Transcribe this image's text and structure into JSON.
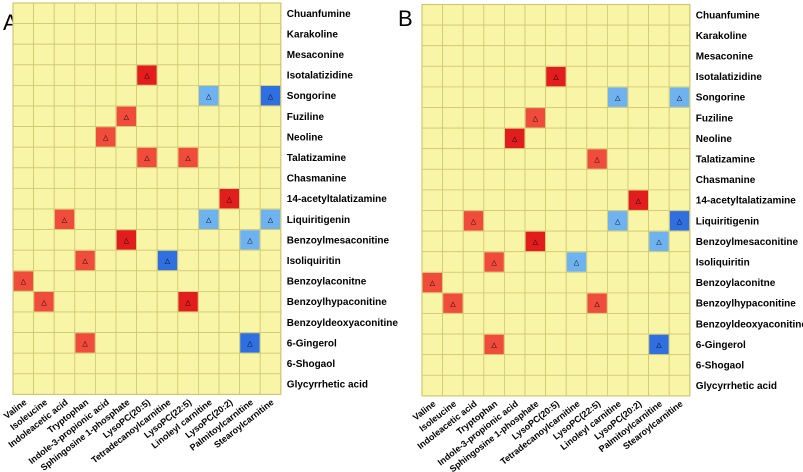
{
  "colors": {
    "background_cell": "#f9f5a7",
    "grid_line": "#cfc870",
    "strong_positive": "#e21d1d",
    "moderate_positive": "#f04c3c",
    "strong_negative": "#2f6fe0",
    "moderate_negative": "#6eb2f0"
  },
  "marker_symbol": "△",
  "chart_data": [
    {
      "panel": "A",
      "type": "heatmap",
      "rows": [
        "Chuanfumine",
        "Karakoline",
        "Mesaconine",
        "Isotalatizidine",
        "Songorine",
        "Fuziline",
        "Neoline",
        "Talatizamine",
        "Chasmanine",
        "14-acetyltalatizamine",
        "Liquiritigenin",
        "Benzoylmesaconitine",
        "Isoliquiritin",
        "Benzoylaconitne",
        "Benzoylhypaconitine",
        "Benzoyldeoxyaconitine",
        "6-Gingerol",
        "6-Shogaol",
        "Glycyrrhetic acid"
      ],
      "columns": [
        "Valine",
        "Isoleucine",
        "Indoleacetic acid",
        "Tryptophan",
        "Indole-3-propionic acid",
        "Sphingosine 1-phosphate",
        "LysoPC(20:5)",
        "Tetradecanoylcarnitine",
        "LysoPC(22:5)",
        "Linoleyl carnitine",
        "LysoPC(20:2)",
        "Palmitoylcarnitine",
        "Stearoylcarnitine"
      ],
      "cells": [
        {
          "row": "Isotalatizidine",
          "col": "LysoPC(20:5)",
          "level": "strong_positive"
        },
        {
          "row": "Songorine",
          "col": "Linoleyl carnitine",
          "level": "moderate_negative"
        },
        {
          "row": "Songorine",
          "col": "Stearoylcarnitine",
          "level": "strong_negative"
        },
        {
          "row": "Fuziline",
          "col": "Sphingosine 1-phosphate",
          "level": "moderate_positive"
        },
        {
          "row": "Neoline",
          "col": "Indole-3-propionic acid",
          "level": "moderate_positive"
        },
        {
          "row": "Talatizamine",
          "col": "LysoPC(20:5)",
          "level": "moderate_positive"
        },
        {
          "row": "Talatizamine",
          "col": "LysoPC(22:5)",
          "level": "moderate_positive"
        },
        {
          "row": "14-acetyltalatizamine",
          "col": "LysoPC(20:2)",
          "level": "strong_positive"
        },
        {
          "row": "Liquiritigenin",
          "col": "Indoleacetic acid",
          "level": "moderate_positive"
        },
        {
          "row": "Liquiritigenin",
          "col": "Linoleyl carnitine",
          "level": "moderate_negative"
        },
        {
          "row": "Liquiritigenin",
          "col": "Stearoylcarnitine",
          "level": "moderate_negative"
        },
        {
          "row": "Benzoylmesaconitine",
          "col": "Sphingosine 1-phosphate",
          "level": "strong_positive"
        },
        {
          "row": "Benzoylmesaconitine",
          "col": "Palmitoylcarnitine",
          "level": "moderate_negative"
        },
        {
          "row": "Isoliquiritin",
          "col": "Tryptophan",
          "level": "moderate_positive"
        },
        {
          "row": "Isoliquiritin",
          "col": "Tetradecanoylcarnitine",
          "level": "strong_negative"
        },
        {
          "row": "Benzoylaconitne",
          "col": "Valine",
          "level": "moderate_positive"
        },
        {
          "row": "Benzoylhypaconitine",
          "col": "Isoleucine",
          "level": "moderate_positive"
        },
        {
          "row": "Benzoylhypaconitine",
          "col": "LysoPC(22:5)",
          "level": "strong_positive"
        },
        {
          "row": "6-Gingerol",
          "col": "Tryptophan",
          "level": "moderate_positive"
        },
        {
          "row": "6-Gingerol",
          "col": "Palmitoylcarnitine",
          "level": "strong_negative"
        }
      ]
    },
    {
      "panel": "B",
      "type": "heatmap",
      "rows": [
        "Chuanfumine",
        "Karakoline",
        "Mesaconine",
        "Isotalatizidine",
        "Songorine",
        "Fuziline",
        "Neoline",
        "Talatizamine",
        "Chasmanine",
        "14-acetyltalatizamine",
        "Liquiritigenin",
        "Benzoylmesaconitine",
        "Isoliquiritin",
        "Benzoylaconitne",
        "Benzoylhypaconitine",
        "Benzoyldeoxyaconitine",
        "6-Gingerol",
        "6-Shogaol",
        "Glycyrrhetic acid"
      ],
      "columns": [
        "Valine",
        "Isoleucine",
        "Indoleacetic acid",
        "Tryptophan",
        "Indole-3-propionic acid",
        "Sphingosine 1-phosphate",
        "LysoPC(20:5)",
        "Tetradecanoylcarnitine",
        "LysoPC(22:5)",
        "Linoleyl carnitine",
        "LysoPC(20:2)",
        "Palmitoylcarnitine",
        "Stearoylcarnitine"
      ],
      "cells": [
        {
          "row": "Isotalatizidine",
          "col": "LysoPC(20:5)",
          "level": "strong_positive"
        },
        {
          "row": "Songorine",
          "col": "Linoleyl carnitine",
          "level": "moderate_negative"
        },
        {
          "row": "Songorine",
          "col": "Stearoylcarnitine",
          "level": "moderate_negative"
        },
        {
          "row": "Fuziline",
          "col": "Sphingosine 1-phosphate",
          "level": "moderate_positive"
        },
        {
          "row": "Neoline",
          "col": "Indole-3-propionic acid",
          "level": "strong_positive"
        },
        {
          "row": "Talatizamine",
          "col": "LysoPC(22:5)",
          "level": "moderate_positive"
        },
        {
          "row": "14-acetyltalatizamine",
          "col": "LysoPC(20:2)",
          "level": "strong_positive"
        },
        {
          "row": "Liquiritigenin",
          "col": "Indoleacetic acid",
          "level": "moderate_positive"
        },
        {
          "row": "Liquiritigenin",
          "col": "Linoleyl carnitine",
          "level": "moderate_negative"
        },
        {
          "row": "Liquiritigenin",
          "col": "Stearoylcarnitine",
          "level": "strong_negative"
        },
        {
          "row": "Benzoylmesaconitine",
          "col": "Sphingosine 1-phosphate",
          "level": "strong_positive"
        },
        {
          "row": "Benzoylmesaconitine",
          "col": "Palmitoylcarnitine",
          "level": "moderate_negative"
        },
        {
          "row": "Isoliquiritin",
          "col": "Tryptophan",
          "level": "moderate_positive"
        },
        {
          "row": "Isoliquiritin",
          "col": "Tetradecanoylcarnitine",
          "level": "moderate_negative"
        },
        {
          "row": "Benzoylaconitne",
          "col": "Valine",
          "level": "moderate_positive"
        },
        {
          "row": "Benzoylhypaconitine",
          "col": "Isoleucine",
          "level": "moderate_positive"
        },
        {
          "row": "Benzoylhypaconitine",
          "col": "LysoPC(22:5)",
          "level": "moderate_positive"
        },
        {
          "row": "6-Gingerol",
          "col": "Tryptophan",
          "level": "moderate_positive"
        },
        {
          "row": "6-Gingerol",
          "col": "Palmitoylcarnitine",
          "level": "strong_negative"
        }
      ]
    }
  ]
}
